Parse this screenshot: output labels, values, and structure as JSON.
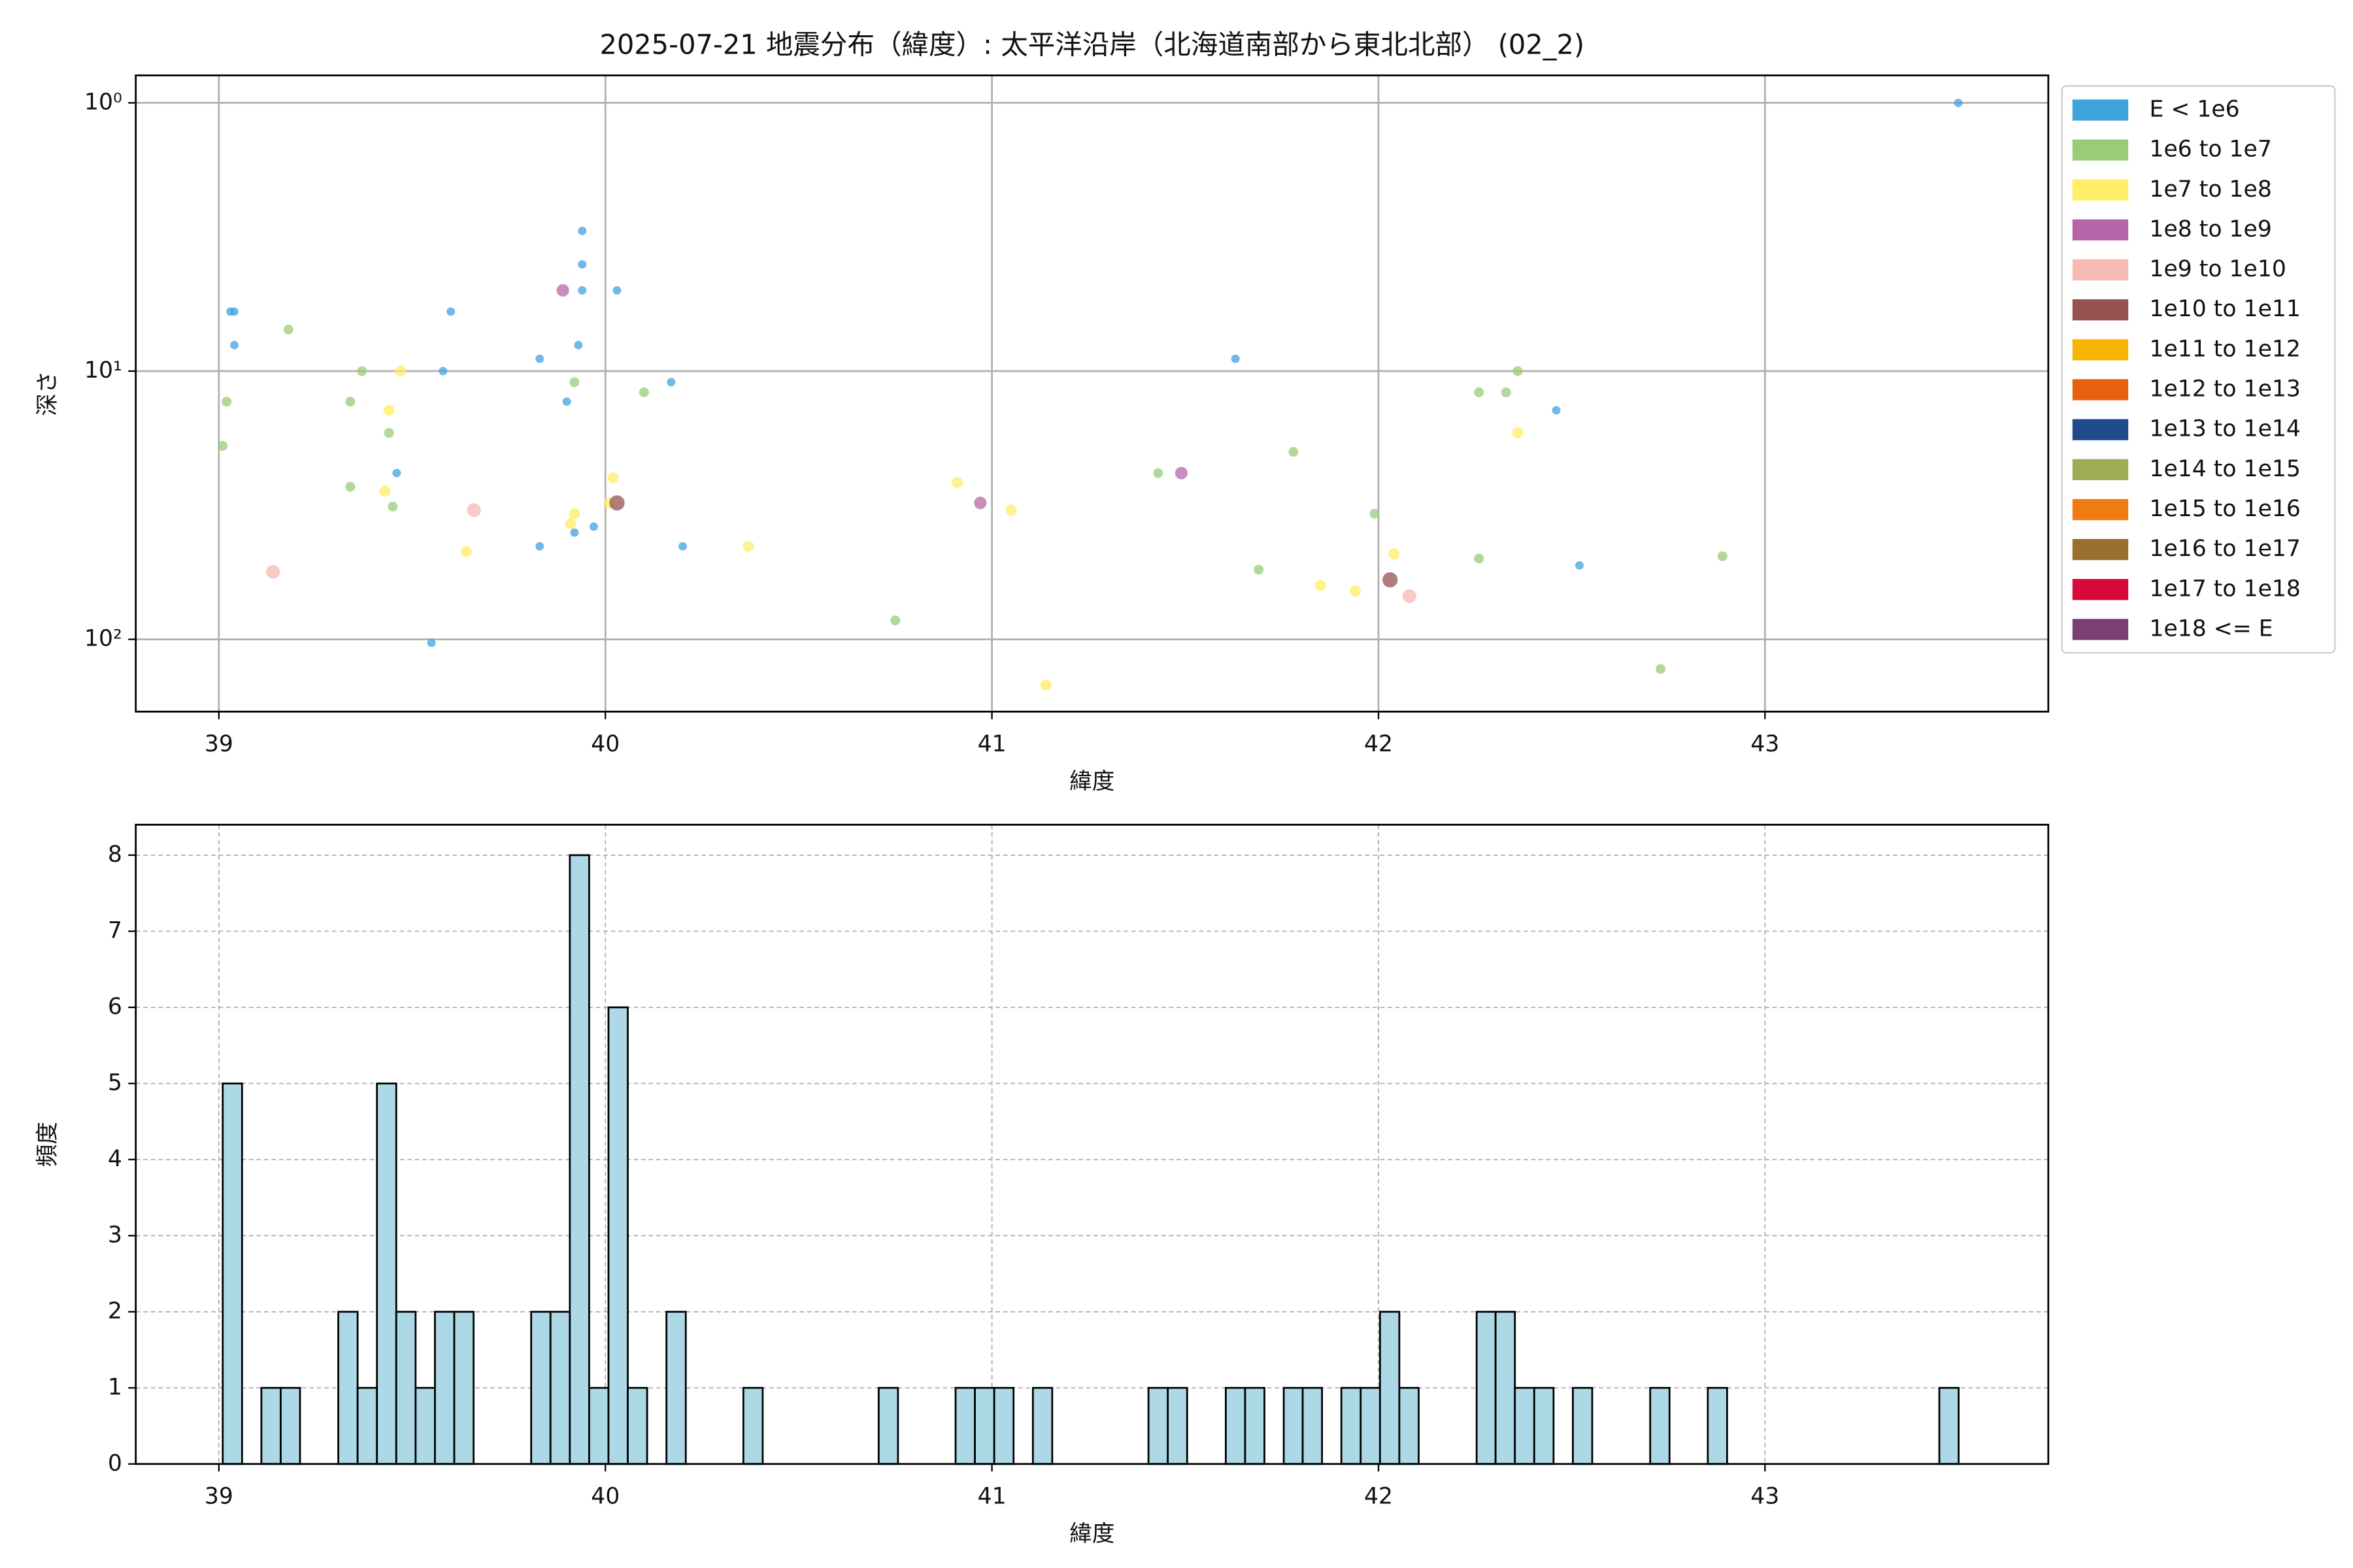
{
  "chart_data": [
    {
      "type": "scatter",
      "title": "2025-07-21 地震分布（緯度）: 太平洋沿岸（北海道南部から東北北部） (02_2)",
      "x_label": "緯度",
      "y_label": "深さ",
      "yscale": "log",
      "grid": true,
      "legend": "outside right",
      "xlim": [
        38.785,
        43.733
      ],
      "xticks": [
        39,
        40,
        41,
        42,
        43
      ],
      "ylim": [
        186,
        0.79
      ],
      "yticks": [
        {
          "value": 1,
          "label": "10⁰"
        },
        {
          "value": 10,
          "label": "10¹"
        },
        {
          "value": 100,
          "label": "10²"
        }
      ],
      "series": [
        {
          "name": "E < 1e6",
          "color": "#3fa3dd",
          "x": [
            43.5,
            39.03,
            39.04,
            39.04,
            39.83,
            39.6,
            39.58,
            39.94,
            39.94,
            39.94,
            40.03,
            39.93,
            39.9,
            40.17,
            39.46,
            39.83,
            39.92,
            39.97,
            40.2,
            39.55,
            41.63,
            42.46,
            42.52
          ],
          "values": [
            1.0,
            6,
            6,
            8,
            9,
            6,
            10,
            3,
            4,
            5,
            5,
            8,
            13,
            11,
            24,
            45,
            40,
            38,
            45,
            103,
            9,
            14,
            53
          ]
        },
        {
          "name": "1e6 to 1e7",
          "color": "#98cc77",
          "x": [
            39.01,
            39.02,
            39.18,
            39.37,
            39.34,
            39.44,
            39.34,
            39.45,
            39.92,
            40.1,
            40.75,
            41.43,
            41.78,
            41.69,
            41.99,
            42.26,
            42.33,
            42.36,
            42.26,
            42.73,
            42.89
          ],
          "values": [
            19,
            13,
            7,
            10,
            13,
            17,
            27,
            32,
            11,
            12,
            85,
            24,
            20,
            55,
            34,
            12,
            12,
            10,
            50,
            129,
            49
          ]
        },
        {
          "name": "1e7 to 1e8",
          "color": "#ffee66",
          "x": [
            39.44,
            39.47,
            39.43,
            39.64,
            39.91,
            39.92,
            40.02,
            40.01,
            40.37,
            40.91,
            41.05,
            41.14,
            41.85,
            41.94,
            42.04,
            42.36
          ],
          "values": [
            14,
            10,
            28,
            47,
            37,
            34,
            25,
            31,
            45,
            26,
            33,
            148,
            63,
            66,
            48,
            17
          ]
        },
        {
          "name": "1e8 to 1e9",
          "color": "#b565a7",
          "x": [
            39.89,
            40.97,
            41.49
          ],
          "values": [
            5,
            31,
            24
          ]
        },
        {
          "name": "1e9 to 1e10",
          "color": "#f5bab3",
          "x": [
            39.14,
            39.66,
            42.08
          ],
          "values": [
            56,
            33,
            69
          ]
        },
        {
          "name": "1e10 to 1e11",
          "color": "#955251",
          "x": [
            40.03,
            42.03
          ],
          "values": [
            31,
            60
          ]
        },
        {
          "name": "1e11 to 1e12",
          "color": "#f7b500",
          "x": [],
          "values": []
        },
        {
          "name": "1e12 to 1e13",
          "color": "#e8610e",
          "x": [],
          "values": []
        },
        {
          "name": "1e13 to 1e14",
          "color": "#1f4a8c",
          "x": [],
          "values": []
        },
        {
          "name": "1e14 to 1e15",
          "color": "#9ead55",
          "x": [],
          "values": []
        },
        {
          "name": "1e15 to 1e16",
          "color": "#f07b12",
          "x": [],
          "values": []
        },
        {
          "name": "1e16 to 1e17",
          "color": "#9a6e2e",
          "x": [],
          "values": []
        },
        {
          "name": "1e17 to 1e18",
          "color": "#d9083a",
          "x": [],
          "values": []
        },
        {
          "name": "1e18 <= E",
          "color": "#7b3f72",
          "x": [],
          "values": []
        }
      ]
    },
    {
      "type": "histogram",
      "x_label": "緯度",
      "y_label": "頻度",
      "grid": true,
      "color": "#add8e6",
      "xlim": [
        38.785,
        43.733
      ],
      "xticks": [
        39,
        40,
        41,
        42,
        43
      ],
      "ylim": [
        0,
        8.4
      ],
      "yticks": [
        0,
        1,
        2,
        3,
        4,
        5,
        6,
        7,
        8
      ],
      "bins": [
        39.01,
        39.06,
        39.11,
        39.16,
        39.21,
        39.26,
        39.309,
        39.359,
        39.409,
        39.459,
        39.509,
        39.559,
        39.609,
        39.659,
        39.709,
        39.759,
        39.808,
        39.858,
        39.908,
        39.958,
        40.008,
        40.058,
        40.108,
        40.158,
        40.208,
        40.258,
        40.307,
        40.357,
        40.407,
        40.457,
        40.507,
        40.557,
        40.607,
        40.657,
        40.707,
        40.757,
        40.806,
        40.856,
        40.906,
        40.956,
        41.006,
        41.056,
        41.106,
        41.156,
        41.206,
        41.256,
        41.305,
        41.355,
        41.405,
        41.455,
        41.505,
        41.555,
        41.605,
        41.655,
        41.705,
        41.755,
        41.804,
        41.854,
        41.904,
        41.954,
        42.004,
        42.054,
        42.104,
        42.154,
        42.204,
        42.254,
        42.303,
        42.353,
        42.403,
        42.453,
        42.503,
        42.553,
        42.603,
        42.653,
        42.703,
        42.753,
        42.802,
        42.852,
        42.902,
        42.952,
        43.002,
        43.052,
        43.102,
        43.152,
        43.202,
        43.252,
        43.301,
        43.351,
        43.401,
        43.451,
        43.501
      ],
      "values": [
        5,
        0,
        1,
        1,
        0,
        0,
        2,
        1,
        5,
        2,
        1,
        2,
        2,
        0,
        0,
        0,
        2,
        2,
        8,
        1,
        6,
        1,
        0,
        2,
        0,
        0,
        0,
        1,
        0,
        0,
        0,
        0,
        0,
        0,
        1,
        0,
        0,
        0,
        1,
        1,
        1,
        0,
        1,
        0,
        0,
        0,
        0,
        0,
        1,
        1,
        0,
        0,
        1,
        1,
        0,
        1,
        1,
        0,
        1,
        1,
        2,
        1,
        0,
        0,
        0,
        2,
        2,
        1,
        1,
        0,
        1,
        0,
        0,
        0,
        1,
        0,
        0,
        1,
        0,
        0,
        0,
        0,
        0,
        0,
        0,
        0,
        0,
        0,
        0,
        1
      ]
    }
  ]
}
